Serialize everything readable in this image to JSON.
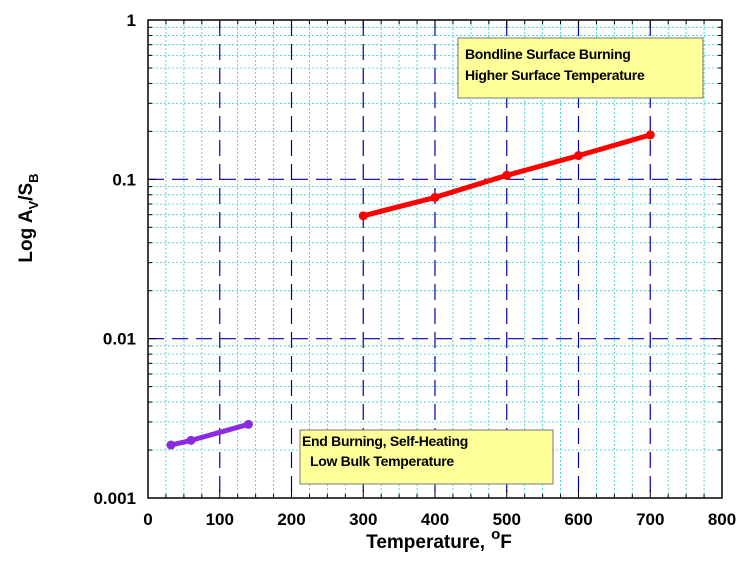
{
  "chart_data": {
    "type": "line",
    "title": "",
    "xlabel": "Temperature, °F",
    "ylabel": "Log Av/SB",
    "xlabel_parts": {
      "main": "Temperature,",
      "sup": "o",
      "unit": "F"
    },
    "ylabel_parts": {
      "main": "Log A",
      "sub1": "V",
      "mid": "/S",
      "sub2": "B"
    },
    "xlim": [
      0,
      800
    ],
    "ylim": [
      0.001,
      1
    ],
    "y_scale": "log",
    "grid": true,
    "x_ticks": [
      "0",
      "100",
      "200",
      "300",
      "400",
      "500",
      "600",
      "700",
      "800"
    ],
    "y_ticks": [
      "0.001",
      "0.01",
      "0.1",
      "1"
    ],
    "series": [
      {
        "color": "#8a2be2",
        "points": [
          [
            32,
            0.00215
          ],
          [
            60,
            0.0023
          ],
          [
            140,
            0.0029
          ]
        ]
      },
      {
        "color": "#ff0000",
        "points": [
          [
            300,
            0.059
          ],
          [
            400,
            0.077
          ],
          [
            500,
            0.106
          ],
          [
            600,
            0.141
          ],
          [
            700,
            0.19
          ]
        ]
      }
    ],
    "annotations": [
      {
        "line1": "Bondline Surface Burning",
        "line2": "Higher Surface Temperature"
      },
      {
        "line1": "End Burning, Self-Heating",
        "line2": "Low Bulk Temperature"
      }
    ],
    "colors": {
      "minor_grid": "#33cccc",
      "major_grid": "#0000aa",
      "note_fill": "#ffff99"
    }
  }
}
